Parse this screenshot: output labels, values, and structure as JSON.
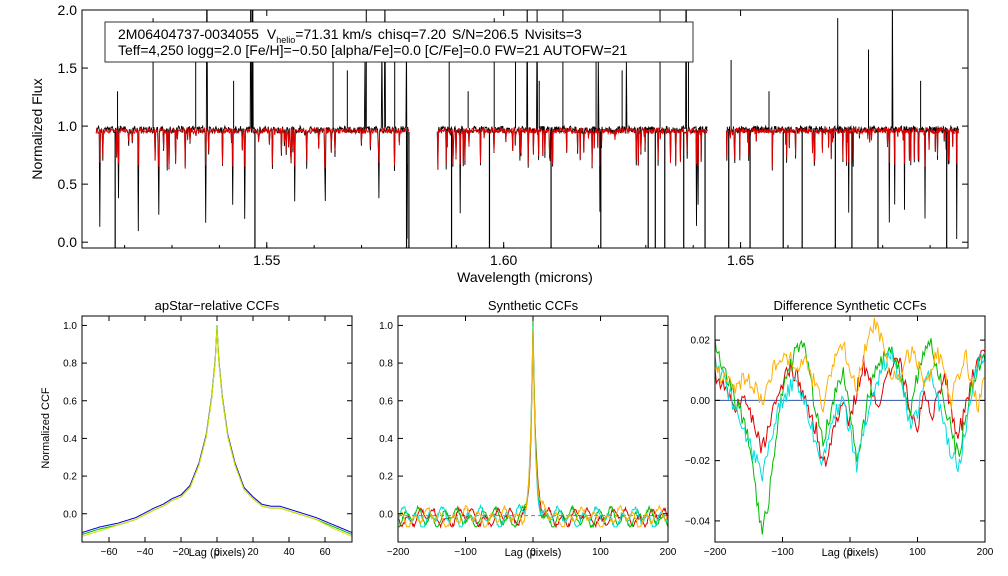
{
  "figure": {
    "top_panel": {
      "star_id": "2M06404737-0034055",
      "vhelio_label_main": "V",
      "vhelio_label_sub": "helio",
      "vhelio_value": "=71.31 km/s",
      "chisq": "chisq=7.20",
      "snr": "S/N=206.5",
      "nvisits": "Nvisits=3",
      "params_line": "Teff=4,250 logg=2.0 [Fe/H]=−0.50 [alpha/Fe]=0.0 [C/Fe]=0.0 FW=21 AUTOFW=21",
      "xlabel": "Wavelength (microns)",
      "ylabel": "Normalized Flux"
    },
    "colors": {
      "observed": "#000000",
      "model": "#dd0000",
      "zero_line": "#3355aa",
      "ccf_series": [
        "#0000cc",
        "#00bb00",
        "#cccc00"
      ],
      "synth_series": [
        "#dd0000",
        "#00cc00",
        "#00cccc",
        "#ffbb00"
      ]
    }
  },
  "chart_data": [
    {
      "type": "line",
      "title": "",
      "xlabel": "Wavelength (microns)",
      "ylabel": "Normalized Flux",
      "xlim": [
        1.511,
        1.698
      ],
      "ylim": [
        -0.05,
        2.0
      ],
      "xticks": [
        "1.55",
        "1.60",
        "1.65"
      ],
      "xtick_values": [
        1.55,
        1.6,
        1.65
      ],
      "yticks": [
        "0.0",
        "0.5",
        "1.0",
        "1.5",
        "2.0"
      ],
      "ytick_values": [
        0.0,
        0.5,
        1.0,
        1.5,
        2.0
      ],
      "chip_ranges": [
        [
          1.514,
          1.58
        ],
        [
          1.586,
          1.643
        ],
        [
          1.647,
          1.696
        ]
      ],
      "series": [
        {
          "color": "black",
          "continuum": 0.97
        },
        {
          "color": "red",
          "continuum": 0.96
        }
      ]
    },
    {
      "type": "line",
      "title": "apStar−relative CCFs",
      "xlabel": "Lag (pixels)",
      "ylabel": "Normalized CCF",
      "xlim": [
        -75,
        75
      ],
      "ylim": [
        -0.15,
        1.05
      ],
      "xticks": [
        "−60",
        "−40",
        "−20",
        "0",
        "20",
        "40",
        "60"
      ],
      "xtick_values": [
        -60,
        -40,
        -20,
        0,
        20,
        40,
        60
      ],
      "yticks": [
        "0.0",
        "0.2",
        "0.4",
        "0.6",
        "0.8",
        "1.0"
      ],
      "ytick_values": [
        0.0,
        0.2,
        0.4,
        0.6,
        0.8,
        1.0
      ],
      "x": [
        -75,
        -65,
        -55,
        -45,
        -35,
        -30,
        -25,
        -20,
        -15,
        -10,
        -6,
        -3,
        -1,
        0,
        1,
        3,
        6,
        10,
        15,
        20,
        25,
        30,
        35,
        45,
        55,
        65,
        75
      ],
      "series": [
        {
          "color": "blue",
          "values": [
            -0.1,
            -0.07,
            -0.05,
            -0.02,
            0.03,
            0.05,
            0.08,
            0.1,
            0.15,
            0.27,
            0.42,
            0.62,
            0.82,
            0.99,
            0.82,
            0.62,
            0.42,
            0.27,
            0.14,
            0.09,
            0.05,
            0.04,
            0.04,
            0.01,
            -0.02,
            -0.06,
            -0.1
          ]
        },
        {
          "color": "green",
          "values": [
            -0.11,
            -0.08,
            -0.06,
            -0.03,
            0.02,
            0.04,
            0.07,
            0.09,
            0.14,
            0.26,
            0.41,
            0.61,
            0.81,
            1.0,
            0.81,
            0.61,
            0.41,
            0.26,
            0.13,
            0.08,
            0.04,
            0.03,
            0.03,
            0.0,
            -0.03,
            -0.07,
            -0.11
          ]
        },
        {
          "color": "yellow",
          "values": [
            -0.12,
            -0.09,
            -0.06,
            -0.03,
            0.02,
            0.04,
            0.07,
            0.09,
            0.14,
            0.26,
            0.41,
            0.61,
            0.81,
            0.99,
            0.81,
            0.61,
            0.41,
            0.26,
            0.13,
            0.08,
            0.04,
            0.03,
            0.03,
            0.0,
            -0.03,
            -0.08,
            -0.12
          ]
        }
      ]
    },
    {
      "type": "line",
      "title": "Synthetic CCFs",
      "xlabel": "Lag (pixels)",
      "ylabel": "",
      "xlim": [
        -200,
        200
      ],
      "ylim": [
        -0.15,
        1.05
      ],
      "xticks": [
        "−200",
        "−100",
        "0",
        "100",
        "200"
      ],
      "xtick_values": [
        -200,
        -100,
        0,
        100,
        200
      ],
      "yticks": [
        "0.0",
        "0.2",
        "0.4",
        "0.6",
        "0.8",
        "1.0"
      ],
      "ytick_values": [
        0.0,
        0.2,
        0.4,
        0.6,
        0.8,
        1.0
      ],
      "peak": {
        "x": 0,
        "y": 1.0,
        "width": 4
      },
      "baseline": {
        "value": -0.01,
        "color": "#808080"
      },
      "series": [
        {
          "color": "red"
        },
        {
          "color": "green"
        },
        {
          "color": "cyan"
        },
        {
          "color": "orange"
        }
      ]
    },
    {
      "type": "line",
      "title": "Difference Synthetic CCFs",
      "xlabel": "Lag (pixels)",
      "ylabel": "",
      "xlim": [
        -200,
        200
      ],
      "ylim": [
        -0.047,
        0.028
      ],
      "xticks": [
        "−200",
        "−100",
        "0",
        "100",
        "200"
      ],
      "xtick_values": [
        -200,
        -100,
        0,
        100,
        200
      ],
      "yticks": [
        "−0.04",
        "−0.02",
        "0.00",
        "0.02"
      ],
      "ytick_values": [
        -0.04,
        -0.02,
        0.0,
        0.02
      ],
      "zero_line": 0.0,
      "x": [
        -200,
        -185,
        -170,
        -155,
        -140,
        -130,
        -120,
        -110,
        -100,
        -90,
        -80,
        -70,
        -60,
        -50,
        -40,
        -30,
        -20,
        -10,
        0,
        10,
        20,
        30,
        40,
        50,
        60,
        70,
        80,
        90,
        100,
        110,
        120,
        130,
        140,
        150,
        160,
        170,
        180,
        190,
        200
      ],
      "series": [
        {
          "color": "red",
          "values": [
            0.008,
            0.004,
            -0.004,
            0.002,
            -0.01,
            -0.016,
            -0.008,
            0.0,
            0.006,
            0.01,
            0.008,
            0.003,
            -0.004,
            -0.01,
            -0.022,
            -0.015,
            -0.006,
            -0.002,
            -0.008,
            0.004,
            0.012,
            0.006,
            -0.002,
            0.003,
            0.01,
            0.014,
            0.008,
            -0.004,
            -0.008,
            0.004,
            -0.006,
            0.002,
            0.01,
            -0.004,
            -0.012,
            -0.004,
            0.006,
            0.016,
            0.014
          ]
        },
        {
          "color": "green",
          "values": [
            0.018,
            0.01,
            0.0,
            -0.008,
            -0.03,
            -0.044,
            -0.032,
            -0.012,
            0.004,
            0.01,
            0.016,
            0.02,
            0.008,
            -0.004,
            -0.014,
            -0.006,
            0.004,
            0.01,
            -0.004,
            -0.018,
            -0.008,
            0.004,
            0.01,
            0.014,
            0.018,
            0.012,
            0.004,
            -0.004,
            0.008,
            0.016,
            0.02,
            0.01,
            0.0,
            -0.01,
            -0.018,
            -0.008,
            0.004,
            0.012,
            0.016
          ]
        },
        {
          "color": "cyan",
          "values": [
            0.012,
            0.006,
            -0.004,
            -0.012,
            -0.02,
            -0.024,
            -0.016,
            -0.006,
            0.0,
            0.004,
            0.006,
            0.002,
            -0.006,
            -0.014,
            -0.02,
            -0.012,
            -0.004,
            0.0,
            -0.01,
            -0.022,
            -0.012,
            0.0,
            0.006,
            0.012,
            0.016,
            0.01,
            0.002,
            -0.008,
            -0.004,
            0.008,
            0.01,
            0.0,
            -0.01,
            -0.018,
            -0.022,
            -0.012,
            0.002,
            0.012,
            0.016
          ]
        },
        {
          "color": "orange",
          "values": [
            0.01,
            0.006,
            0.004,
            0.008,
            0.004,
            -0.002,
            0.006,
            0.012,
            0.016,
            0.014,
            0.01,
            0.014,
            0.01,
            0.004,
            -0.002,
            0.008,
            0.014,
            0.018,
            0.01,
            0.004,
            0.014,
            0.024,
            0.026,
            0.016,
            0.01,
            0.006,
            0.012,
            0.016,
            0.012,
            0.006,
            0.01,
            0.016,
            0.008,
            0.0,
            0.008,
            0.016,
            0.006,
            -0.002,
            0.008
          ]
        }
      ]
    }
  ]
}
